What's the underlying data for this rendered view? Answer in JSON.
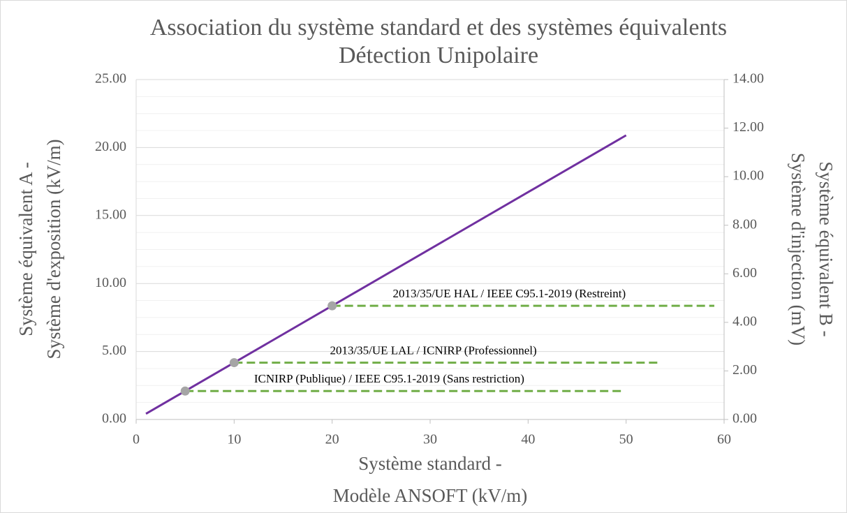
{
  "chart_data": {
    "type": "scatter",
    "title": [
      "Association du système standard et des systèmes équivalents",
      "Détection Unipolaire"
    ],
    "xlabel": [
      "Système standard -",
      "Modèle ANSOFT (kV/m)"
    ],
    "ylabel": [
      "Système équivalent A -",
      "Système d'exposition (kV/m)"
    ],
    "y2label": [
      "Système équivalent B -",
      "Système d'injection (mV)"
    ],
    "xlim": [
      0,
      60
    ],
    "xticks": [
      0,
      10,
      20,
      30,
      40,
      50,
      60
    ],
    "ylim": [
      0,
      25
    ],
    "yticks": [
      {
        "value": 0,
        "label": "0.00"
      },
      {
        "value": 5,
        "label": "5.00"
      },
      {
        "value": 10,
        "label": "10.00"
      },
      {
        "value": 15,
        "label": "15.00"
      },
      {
        "value": 20,
        "label": "20.00"
      },
      {
        "value": 25,
        "label": "25.00"
      }
    ],
    "y2lim": [
      0,
      14
    ],
    "y2ticks": [
      {
        "value": 0,
        "label": "0.00"
      },
      {
        "value": 2,
        "label": "2.00"
      },
      {
        "value": 4,
        "label": "4.00"
      },
      {
        "value": 6,
        "label": "6.00"
      },
      {
        "value": 8,
        "label": "8.00"
      },
      {
        "value": 10,
        "label": "10.00"
      },
      {
        "value": 12,
        "label": "12.00"
      },
      {
        "value": 14,
        "label": "14.00"
      }
    ],
    "grid": true,
    "minor_grid": true,
    "series": [
      {
        "style": "line",
        "color": "#7030a0",
        "x": [
          1,
          50
        ],
        "values": [
          0.42,
          20.9
        ]
      },
      {
        "style": "dashed",
        "name": "ICNIRP (Publique) / IEEE C95.1-2019 (Sans restriction)",
        "color": "#70ad47",
        "x": [
          5,
          49.5
        ],
        "values": [
          2.09,
          2.09
        ]
      },
      {
        "style": "dashed",
        "name": "2013/35/UE LAL / ICNIRP (Professionnel)",
        "color": "#70ad47",
        "x": [
          10,
          53.5
        ],
        "values": [
          4.18,
          4.18
        ]
      },
      {
        "style": "dashed",
        "name": "2013/35/UE HAL / IEEE C95.1-2019 (Restreint)",
        "color": "#70ad47",
        "x": [
          20,
          59
        ],
        "values": [
          8.36,
          8.36
        ]
      },
      {
        "style": "marker",
        "color": "#a5a5a5",
        "x": [
          5,
          10,
          20
        ],
        "values": [
          2.09,
          4.18,
          8.36
        ]
      }
    ]
  }
}
